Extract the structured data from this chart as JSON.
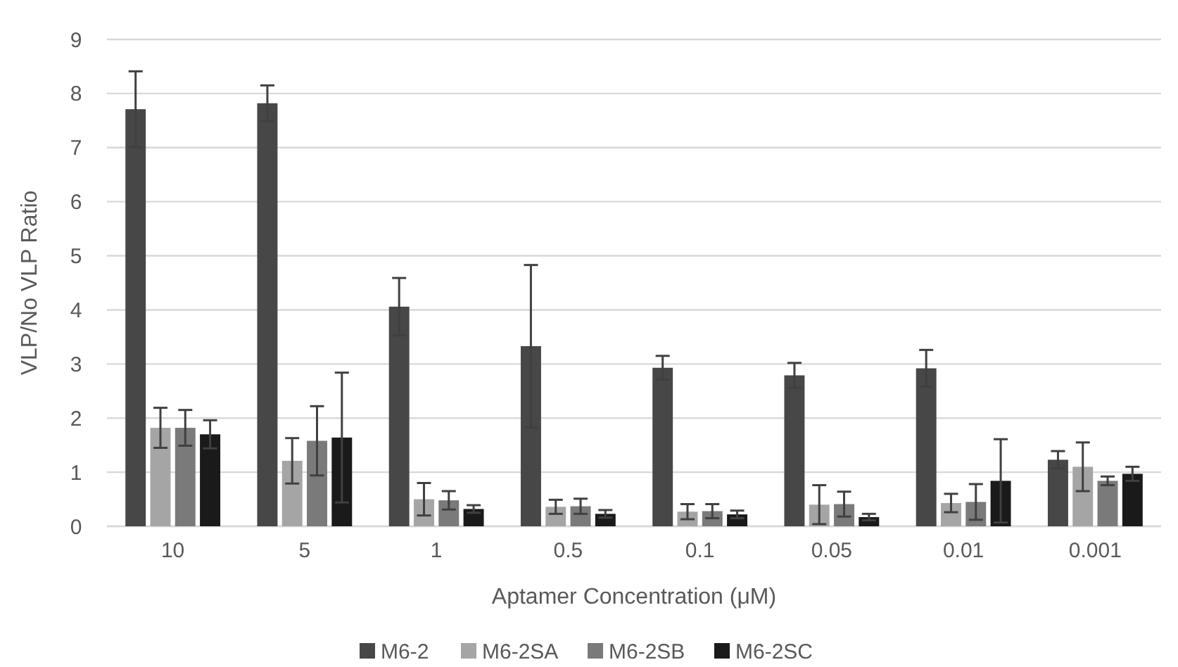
{
  "chart_data": {
    "type": "bar",
    "xlabel": "Aptamer Concentration (μM)",
    "ylabel": "VLP/No VLP Ratio",
    "categories": [
      "10",
      "5",
      "1",
      "0.5",
      "0.1",
      "0.05",
      "0.01",
      "0.001"
    ],
    "series": [
      {
        "name": "M6-2",
        "color": "#474747",
        "values": [
          7.71,
          7.82,
          4.06,
          3.33,
          2.93,
          2.79,
          2.92,
          1.23
        ],
        "errors": [
          0.7,
          0.33,
          0.53,
          1.5,
          0.22,
          0.23,
          0.34,
          0.16
        ]
      },
      {
        "name": "M6-2SA",
        "color": "#a5a5a5",
        "values": [
          1.82,
          1.21,
          0.5,
          0.36,
          0.27,
          0.4,
          0.43,
          1.1
        ],
        "errors": [
          0.37,
          0.42,
          0.3,
          0.13,
          0.14,
          0.36,
          0.17,
          0.45
        ]
      },
      {
        "name": "M6-2SB",
        "color": "#7a7a7a",
        "values": [
          1.82,
          1.58,
          0.48,
          0.37,
          0.28,
          0.41,
          0.45,
          0.84
        ],
        "errors": [
          0.33,
          0.64,
          0.17,
          0.14,
          0.13,
          0.23,
          0.33,
          0.08
        ]
      },
      {
        "name": "M6-2SC",
        "color": "#1a1a1a",
        "values": [
          1.7,
          1.64,
          0.32,
          0.23,
          0.22,
          0.17,
          0.84,
          0.97
        ],
        "errors": [
          0.26,
          1.2,
          0.07,
          0.07,
          0.07,
          0.06,
          0.77,
          0.13
        ]
      }
    ],
    "ylim": [
      0,
      9
    ],
    "yticks": [
      0,
      1,
      2,
      3,
      4,
      5,
      6,
      7,
      8,
      9
    ],
    "grid": "y",
    "legend": "bottom"
  }
}
